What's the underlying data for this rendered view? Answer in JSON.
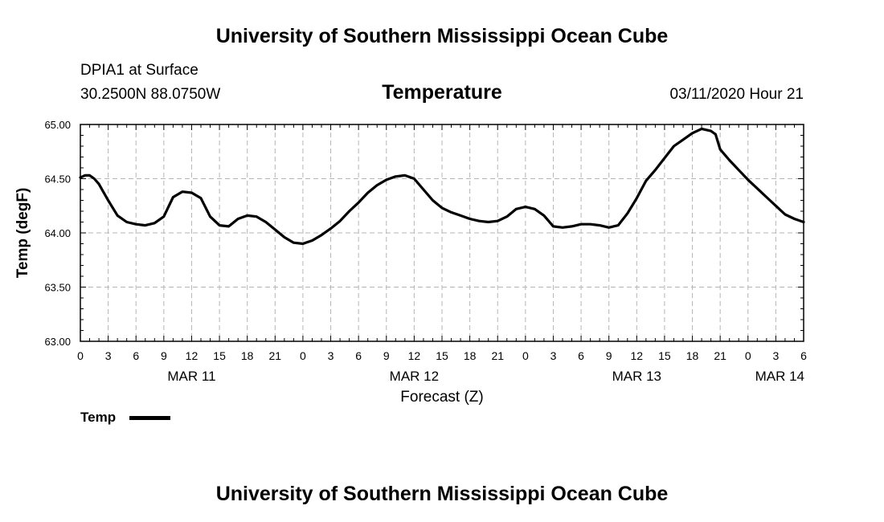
{
  "header": {
    "title_top": "University of Southern Mississippi Ocean Cube",
    "title_bottom": "University of Southern Mississippi Ocean Cube",
    "station": "DPIA1 at Surface",
    "coords": "30.2500N 88.0750W",
    "run": "03/11/2020 Hour 21"
  },
  "legend": {
    "label": "Temp"
  },
  "chart_data": {
    "type": "line",
    "title": "Temperature",
    "xlabel": "Forecast (Z)",
    "ylabel": "Temp (degF)",
    "ylim": [
      63.0,
      65.0
    ],
    "yticks": [
      "63.00",
      "63.50",
      "64.00",
      "64.50",
      "65.00"
    ],
    "xlim_hours": [
      0,
      78
    ],
    "xtick_labels": [
      "0",
      "3",
      "6",
      "9",
      "12",
      "15",
      "18",
      "21",
      "0",
      "3",
      "6",
      "9",
      "12",
      "15",
      "18",
      "21",
      "0",
      "3",
      "6",
      "9",
      "12",
      "15",
      "18",
      "21",
      "0",
      "3",
      "6"
    ],
    "date_labels": [
      {
        "hour": 12,
        "label": "MAR 11"
      },
      {
        "hour": 36,
        "label": "MAR 12"
      },
      {
        "hour": 60,
        "label": "MAR 13"
      },
      {
        "hour": 78,
        "label": "MAR 14"
      }
    ],
    "grid": true,
    "series": [
      {
        "name": "Temp",
        "color": "#000000",
        "hours": [
          0,
          0.5,
          1,
          1.5,
          2,
          3,
          4,
          5,
          6,
          7,
          8,
          9,
          10,
          11,
          12,
          13,
          14,
          15,
          16,
          17,
          18,
          19,
          20,
          21,
          22,
          23,
          24,
          25,
          26,
          27,
          28,
          29,
          30,
          31,
          32,
          33,
          34,
          35,
          36,
          37,
          38,
          39,
          40,
          41,
          42,
          43,
          44,
          45,
          46,
          47,
          48,
          49,
          50,
          51,
          52,
          53,
          54,
          55,
          56,
          57,
          58,
          59,
          60,
          61,
          62,
          63,
          64,
          65,
          66,
          67,
          68,
          68.5,
          69,
          70,
          71,
          72,
          73,
          74,
          75,
          76,
          77,
          78
        ],
        "values": [
          64.51,
          64.53,
          64.53,
          64.5,
          64.45,
          64.3,
          64.16,
          64.1,
          64.08,
          64.07,
          64.09,
          64.15,
          64.33,
          64.38,
          64.37,
          64.32,
          64.15,
          64.07,
          64.06,
          64.13,
          64.16,
          64.15,
          64.1,
          64.03,
          63.96,
          63.91,
          63.9,
          63.93,
          63.98,
          64.04,
          64.11,
          64.2,
          64.28,
          64.37,
          64.44,
          64.49,
          64.52,
          64.53,
          64.5,
          64.4,
          64.3,
          64.23,
          64.19,
          64.16,
          64.13,
          64.11,
          64.1,
          64.11,
          64.15,
          64.22,
          64.24,
          64.22,
          64.16,
          64.06,
          64.05,
          64.06,
          64.08,
          64.08,
          64.07,
          64.05,
          64.07,
          64.18,
          64.32,
          64.48,
          64.58,
          64.69,
          64.8,
          64.86,
          64.92,
          64.96,
          64.94,
          64.91,
          64.77,
          64.67,
          64.58,
          64.49,
          64.41,
          64.33,
          64.25,
          64.17,
          64.13,
          64.1
        ]
      }
    ]
  }
}
